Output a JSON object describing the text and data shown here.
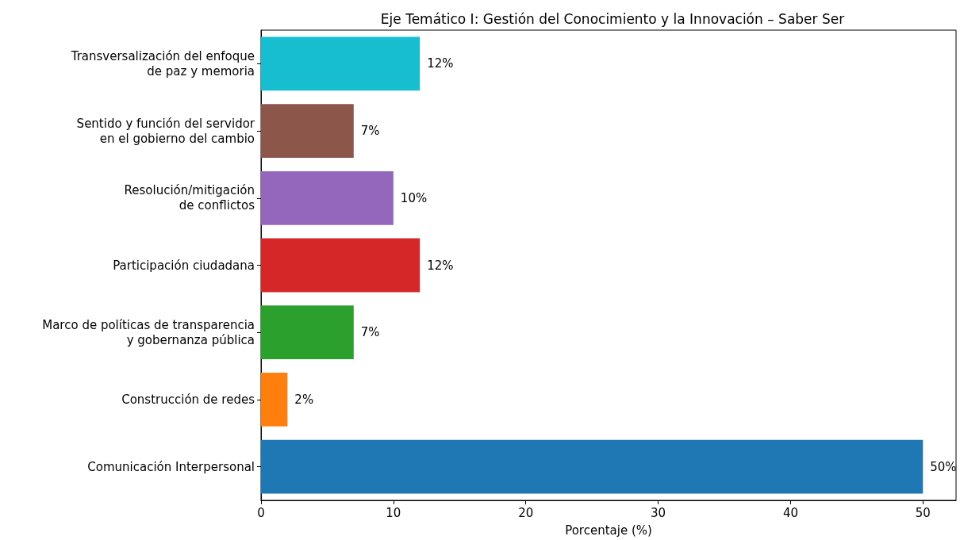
{
  "chart_data": {
    "type": "bar",
    "orientation": "horizontal",
    "title": "Eje Temático I: Gestión del Conocimiento y la Innovación – Saber Ser",
    "xlabel": "Porcentaje (%)",
    "categories": [
      "Transversalización del enfoque\nde paz y memoria",
      "Sentido y función del servidor\nen el gobierno del cambio",
      "Resolución/mitigación\nde conflictos",
      "Participación ciudadana",
      "Marco de políticas de transparencia\ny gobernanza pública",
      "Construcción de redes",
      "Comunicación Interpersonal"
    ],
    "values": [
      12,
      7,
      10,
      12,
      7,
      2,
      50
    ],
    "colors": [
      "#17becf",
      "#8c564b",
      "#9467bd",
      "#d62728",
      "#2ca02c",
      "#ff7f0e",
      "#1f77b4"
    ],
    "value_labels": [
      "12%",
      "7%",
      "10%",
      "12%",
      "7%",
      "2%",
      "50%"
    ],
    "xlim": [
      0,
      52.5
    ],
    "xticks": [
      0,
      10,
      20,
      30,
      40,
      50
    ],
    "grid": false
  }
}
